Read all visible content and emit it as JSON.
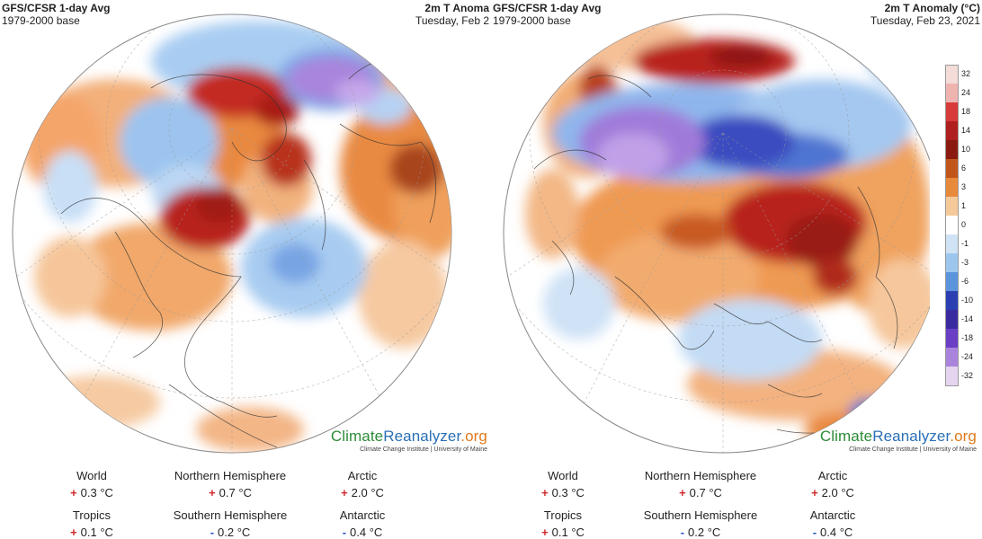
{
  "left": {
    "title": "GFS/CFSR 1-day Avg",
    "subtitle": "1979-2000 base",
    "right_title": "2m T Anoma",
    "right_subtitle": "Tuesday, Feb 2",
    "brand_main_1": "Climate",
    "brand_main_2": "Reanalyzer",
    "brand_main_3": ".org",
    "brand_sub": "Climate Change Institute | University of Maine",
    "stats": [
      {
        "label": "World",
        "sign": "+",
        "value": "0.3 °C"
      },
      {
        "label": "Northern Hemisphere",
        "sign": "+",
        "value": "0.7 °C"
      },
      {
        "label": "Arctic",
        "sign": "+",
        "value": "2.0 °C"
      },
      {
        "label": "Tropics",
        "sign": "+",
        "value": "0.1 °C"
      },
      {
        "label": "Southern Hemisphere",
        "sign": "-",
        "value": "0.2 °C"
      },
      {
        "label": "Antarctic",
        "sign": "-",
        "value": "0.4 °C"
      }
    ]
  },
  "right": {
    "title": "GFS/CFSR 1-day Avg",
    "subtitle": "1979-2000 base",
    "right_title": "2m T Anomaly (°C)",
    "right_subtitle": "Tuesday, Feb 23, 2021",
    "brand_main_1": "Climate",
    "brand_main_2": "Reanalyzer",
    "brand_main_3": ".org",
    "brand_sub": "Climate Change Institute | University of Maine",
    "stats": [
      {
        "label": "World",
        "sign": "+",
        "value": "0.3 °C"
      },
      {
        "label": "Northern Hemisphere",
        "sign": "+",
        "value": "0.7 °C"
      },
      {
        "label": "Arctic",
        "sign": "+",
        "value": "2.0 °C"
      },
      {
        "label": "Tropics",
        "sign": "+",
        "value": "0.1 °C"
      },
      {
        "label": "Southern Hemisphere",
        "sign": "-",
        "value": "0.2 °C"
      },
      {
        "label": "Antarctic",
        "sign": "-",
        "value": "0.4 °C"
      }
    ]
  },
  "colorbar": {
    "ticks": [
      "32",
      "24",
      "18",
      "14",
      "10",
      "6",
      "3",
      "1",
      "0",
      "-1",
      "-3",
      "-6",
      "-10",
      "-14",
      "-18",
      "-24",
      "-32"
    ],
    "colors": [
      "#f4dcd8",
      "#f0b4b0",
      "#d83a3a",
      "#b01f1f",
      "#8a1a10",
      "#c2561a",
      "#e88a3c",
      "#f5c99a",
      "#ffffff",
      "#cfe3f5",
      "#9cc6ee",
      "#5b93dd",
      "#2b3fb3",
      "#3a2aa0",
      "#6a3fc6",
      "#a983dc",
      "#e4d4f0"
    ]
  },
  "colors": {
    "ocean_white": "#ffffff",
    "warm": "#e8823a",
    "hot": "#b8241c",
    "cool": "#8fbbec",
    "cold": "#3b52c4",
    "very_cold": "#9a6fd6"
  }
}
